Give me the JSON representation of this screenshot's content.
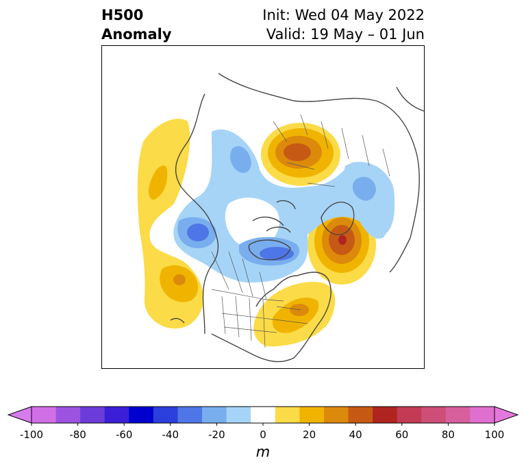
{
  "title": {
    "main_line1": "H500",
    "main_line2": "Anomaly",
    "init": "Init: Wed 04 May 2022",
    "valid": "Valid: 19 May – 01 Jun"
  },
  "colorbar": {
    "unit": "m",
    "ticks": [
      "-100",
      "-80",
      "-60",
      "-40",
      "-20",
      "0",
      "20",
      "40",
      "60",
      "80",
      "100"
    ],
    "levels": [
      -100,
      -90,
      -80,
      -70,
      -60,
      -50,
      -40,
      -30,
      -20,
      -10,
      10,
      20,
      30,
      40,
      50,
      60,
      70,
      80,
      90,
      100
    ],
    "colors": [
      "#d16fe6",
      "#9c54e0",
      "#6c3cdb",
      "#3b1fd6",
      "#0000cf",
      "#2a3fdc",
      "#4f76e6",
      "#79aeee",
      "#a6d4f7",
      "#ffffff",
      "#fbdb47",
      "#f0b400",
      "#dc8a0b",
      "#c65a14",
      "#b0241f",
      "#c33a55",
      "#cd4f78",
      "#d75f9c",
      "#e070d0"
    ],
    "under_color": "#d67cec",
    "over_color": "#e578dc"
  },
  "map": {
    "projection": "North polar stereographic",
    "anomaly_features": [
      {
        "id": "ridge-west-canada-coast",
        "sign": "positive",
        "peak_m": 15
      },
      {
        "id": "ridge-north-pacific",
        "sign": "positive",
        "peak_m": 25
      },
      {
        "id": "ridge-russia",
        "sign": "positive",
        "peak_m": 45
      },
      {
        "id": "ridge-north-atlantic",
        "sign": "positive",
        "peak_m": 55
      },
      {
        "id": "ridge-eastern-us",
        "sign": "positive",
        "peak_m": 25
      },
      {
        "id": "trough-alaska",
        "sign": "negative",
        "peak_m": -35
      },
      {
        "id": "trough-hudson-bay",
        "sign": "negative",
        "peak_m": -35
      },
      {
        "id": "trough-europe",
        "sign": "negative",
        "peak_m": -15
      },
      {
        "id": "trough-arctic",
        "sign": "negative",
        "peak_m": -15
      }
    ]
  }
}
